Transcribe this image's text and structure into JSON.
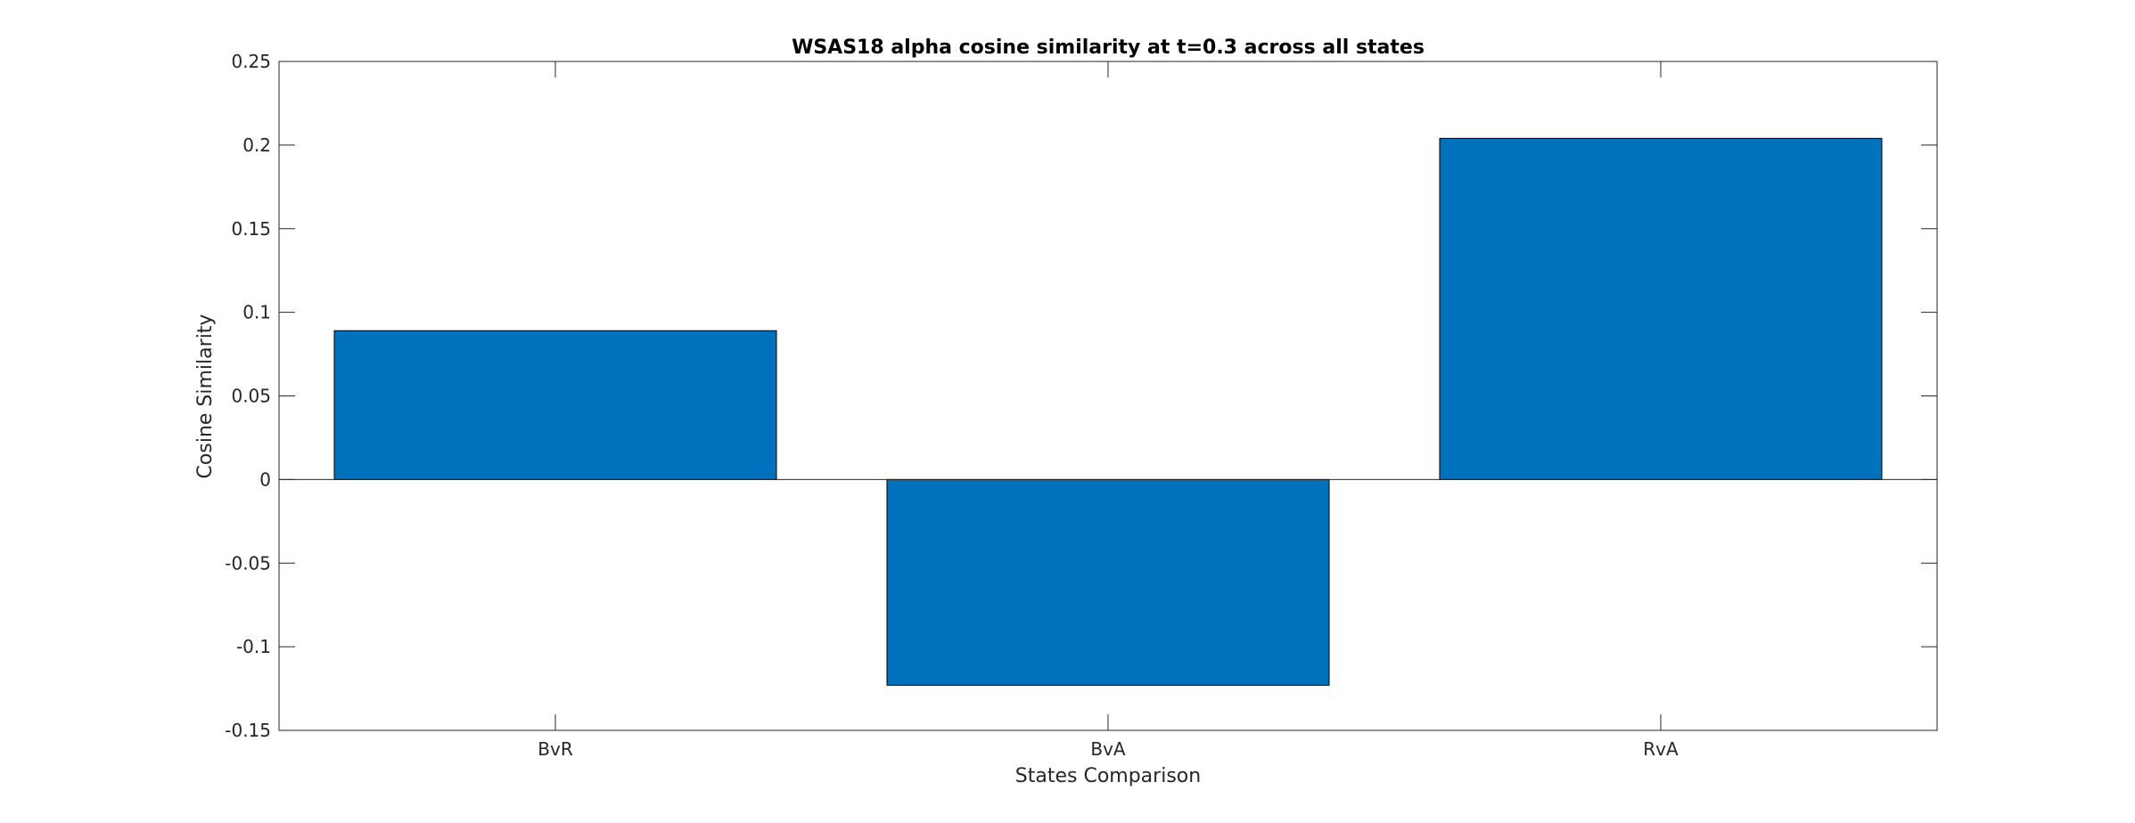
{
  "chart_data": {
    "type": "bar",
    "title": "WSAS18 alpha cosine similarity at t=0.3 across all states",
    "xlabel": "States Comparison",
    "ylabel": "Cosine Similarity",
    "categories": [
      "BvR",
      "BvA",
      "RvA"
    ],
    "values": [
      0.089,
      -0.123,
      0.204
    ],
    "ylim": [
      -0.15,
      0.25
    ],
    "yticks": [
      -0.15,
      -0.1,
      -0.05,
      0,
      0.05,
      0.1,
      0.15,
      0.2,
      0.25
    ],
    "ytick_labels": [
      "-0.15",
      "-0.1",
      "-0.05",
      "0",
      "0.05",
      "0.1",
      "0.15",
      "0.2",
      "0.25"
    ],
    "grid": false,
    "legend": "none",
    "bar_color": "#0072BD"
  }
}
